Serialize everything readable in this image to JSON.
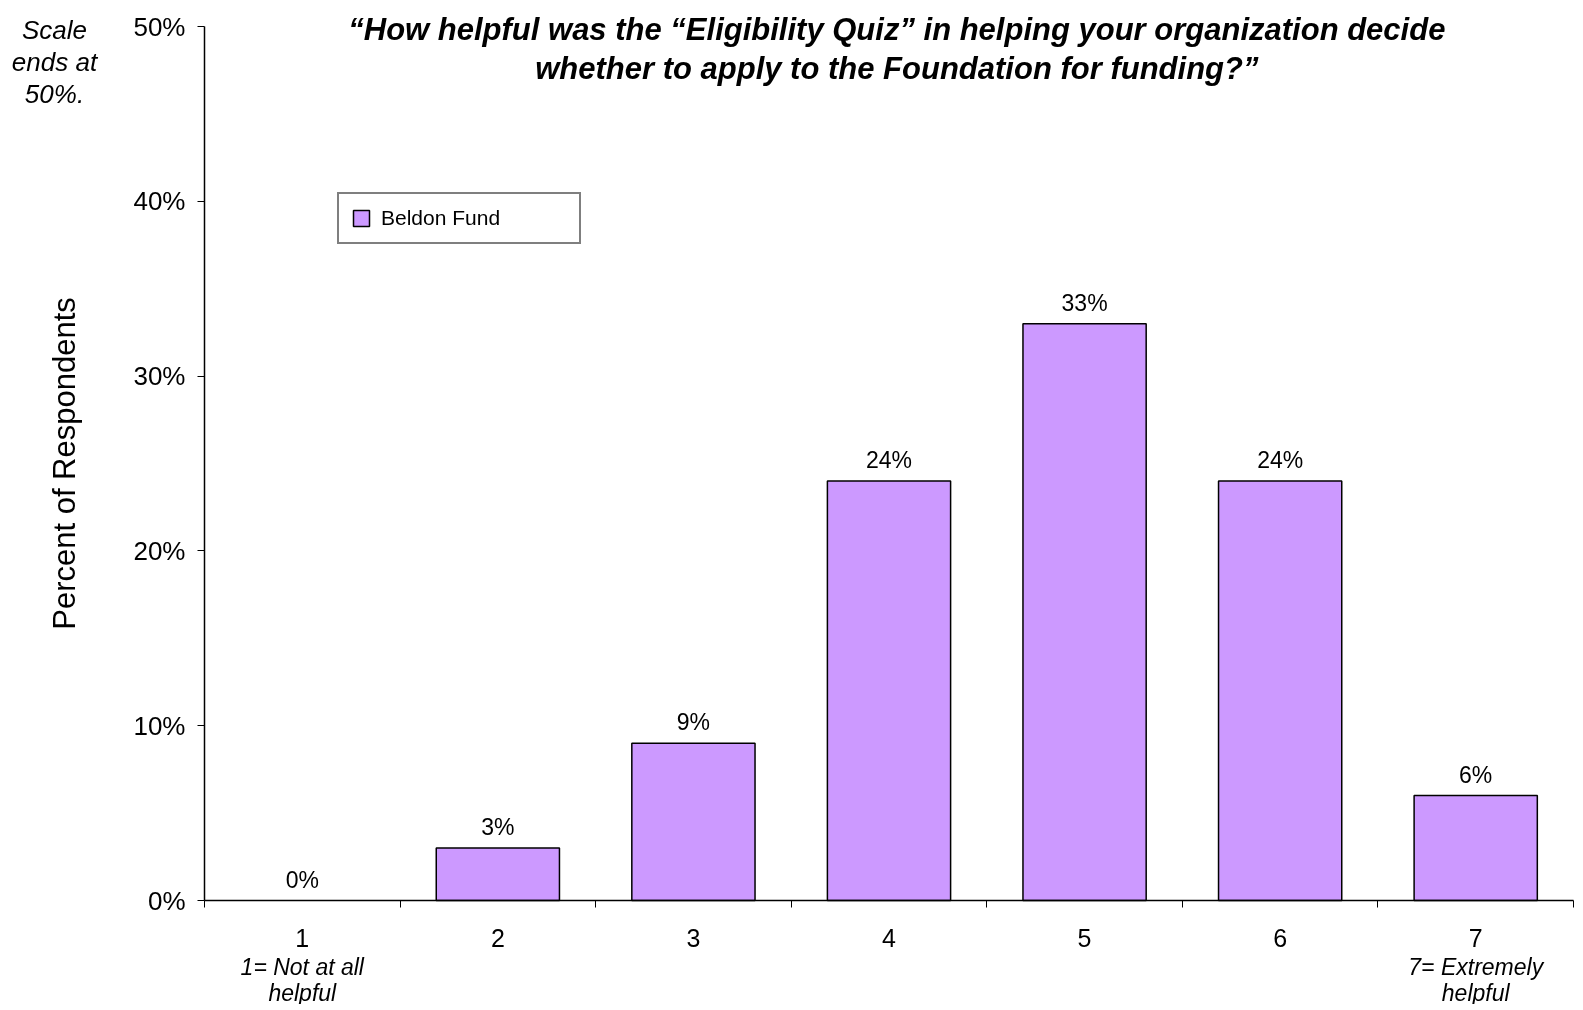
{
  "chart_data": {
    "type": "bar",
    "title": "“How helpful was the “Eligibility Quiz” in helping your organization decide whether to apply to the Foundation for funding?”",
    "ylabel": "Percent of Respondents",
    "categories": [
      "1",
      "2",
      "3",
      "4",
      "5",
      "6",
      "7"
    ],
    "series": [
      {
        "name": "Beldon Fund",
        "color": "#cc99ff",
        "values": [
          0,
          3,
          9,
          24,
          33,
          24,
          6
        ],
        "value_labels": [
          "0%",
          "3%",
          "9%",
          "24%",
          "33%",
          "24%",
          "6%"
        ]
      }
    ],
    "ylim": [
      0,
      50
    ],
    "yticks": [
      {
        "value": 0,
        "label": "0%"
      },
      {
        "value": 10,
        "label": "10%"
      },
      {
        "value": 20,
        "label": "20%"
      },
      {
        "value": 30,
        "label": "30%"
      },
      {
        "value": 40,
        "label": "40%"
      },
      {
        "value": 50,
        "label": "50%"
      }
    ],
    "legend": "top left",
    "annotations": [
      "Scale ends at 50%.",
      "1= Not at all helpful",
      "7= Extremely helpful"
    ]
  }
}
